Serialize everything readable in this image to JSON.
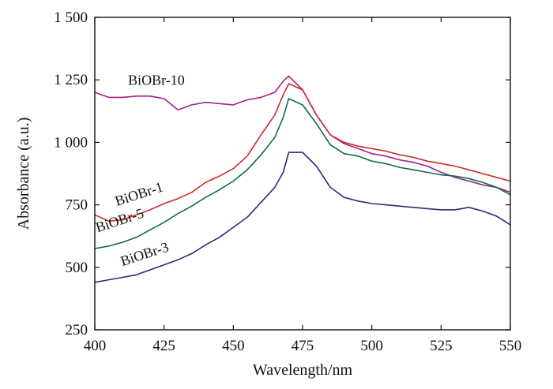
{
  "chart_data": {
    "type": "line",
    "title": "",
    "xlabel": "Wavelength/nm",
    "ylabel": "Absorbance (a.u.)",
    "xlim": [
      400,
      550
    ],
    "ylim": [
      250,
      1500
    ],
    "xticks": [
      400,
      425,
      450,
      475,
      500,
      525,
      550
    ],
    "xtick_labels": [
      "400",
      "425",
      "450",
      "475",
      "500",
      "525",
      "550"
    ],
    "yticks": [
      250,
      500,
      750,
      1000,
      1250,
      1500
    ],
    "ytick_labels": [
      "250",
      "500",
      "750",
      "1 000",
      "1 250",
      "1 500"
    ],
    "grid": false,
    "x": [
      400,
      405,
      410,
      415,
      420,
      425,
      430,
      435,
      440,
      445,
      450,
      455,
      460,
      465,
      468,
      470,
      475,
      480,
      485,
      490,
      495,
      500,
      505,
      510,
      515,
      520,
      525,
      530,
      535,
      540,
      545,
      550
    ],
    "series": [
      {
        "name": "BiOBr-10",
        "color": "#a0237f",
        "values": [
          1200,
          1180,
          1180,
          1185,
          1185,
          1175,
          1130,
          1150,
          1160,
          1155,
          1150,
          1170,
          1180,
          1200,
          1245,
          1265,
          1210,
          1110,
          1030,
          995,
          975,
          955,
          945,
          930,
          920,
          905,
          880,
          860,
          845,
          830,
          820,
          800
        ]
      },
      {
        "name": "BiOBr-1",
        "color": "#d02a2a",
        "values": [
          710,
          685,
          690,
          710,
          730,
          755,
          775,
          800,
          840,
          865,
          895,
          945,
          1030,
          1110,
          1190,
          1235,
          1210,
          1110,
          1030,
          1000,
          985,
          975,
          965,
          950,
          940,
          925,
          915,
          905,
          890,
          875,
          860,
          845
        ]
      },
      {
        "name": "BiOBr-5",
        "color": "#0e6b4d",
        "values": [
          575,
          585,
          600,
          620,
          650,
          680,
          715,
          745,
          780,
          810,
          845,
          890,
          950,
          1020,
          1100,
          1175,
          1150,
          1075,
          990,
          955,
          945,
          925,
          915,
          900,
          890,
          880,
          870,
          865,
          855,
          840,
          820,
          790
        ]
      },
      {
        "name": "BiOBr-3",
        "color": "#2b2a7c",
        "values": [
          440,
          450,
          460,
          470,
          490,
          510,
          530,
          555,
          590,
          620,
          660,
          700,
          760,
          820,
          880,
          960,
          960,
          905,
          820,
          780,
          765,
          755,
          750,
          745,
          740,
          735,
          730,
          730,
          740,
          725,
          705,
          670
        ]
      }
    ],
    "annotations": [
      {
        "series": "BiOBr-10",
        "text": "BiOBr-10",
        "x": 412,
        "y": 1230,
        "rotation": 0
      },
      {
        "series": "BiOBr-1",
        "text": "BiOBr-1",
        "x": 408,
        "y": 745,
        "rotation": -18
      },
      {
        "series": "BiOBr-5",
        "text": "BiOBr-5",
        "x": 401,
        "y": 640,
        "rotation": -18
      },
      {
        "series": "BiOBr-3",
        "text": "BiOBr-3",
        "x": 410,
        "y": 505,
        "rotation": -18
      }
    ]
  }
}
